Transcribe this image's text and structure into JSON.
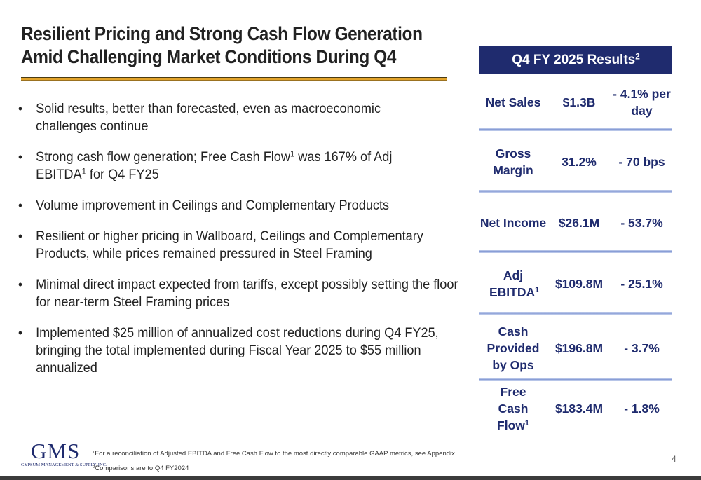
{
  "title": {
    "line1": "Resilient Pricing and Strong Cash Flow Generation",
    "line2": "Amid Challenging Market Conditions During Q4"
  },
  "bullets": [
    {
      "text": "Solid results, better than forecasted, even as macroeconomic challenges continue"
    },
    {
      "part1": "Strong cash flow generation; Free Cash Flow",
      "sup1": "1",
      "part2": " was 167% of Adj EBITDA",
      "sup2": "1",
      "part3": " for Q4 FY25"
    },
    {
      "text": "Volume improvement in Ceilings and Complementary Products"
    },
    {
      "text": "Resilient or higher pricing in Wallboard, Ceilings and Complementary Products, while prices remained pressured in Steel Framing"
    },
    {
      "text": "Minimal direct impact expected from tariffs, except possibly setting the floor for near-term Steel Framing prices"
    },
    {
      "text": "Implemented $25 million of annualized cost reductions during Q4 FY25, bringing the total implemented during Fiscal Year 2025 to $55 million annualized"
    }
  ],
  "bullet_char": "•",
  "results": {
    "header": "Q4 FY 2025 Results",
    "header_sup": "2",
    "rows": [
      {
        "metric": "Net Sales",
        "value": "$1.3B",
        "change": "- 4.1% per day"
      },
      {
        "metric": "Gross Margin",
        "value": "31.2%",
        "change": "- 70 bps"
      },
      {
        "metric": "Net Income",
        "value": "$26.1M",
        "change": "- 53.7%"
      },
      {
        "metric": "Adj EBITDA",
        "metric_sup": "1",
        "value": "$109.8M",
        "change": "- 25.1%"
      },
      {
        "metric": "Cash Provided by Ops",
        "value": "$196.8M",
        "change": "- 3.7%"
      },
      {
        "metric": "Free Cash Flow",
        "metric_sup": "1",
        "value": "$183.4M",
        "change": "- 1.8%"
      }
    ]
  },
  "logo": {
    "mark": "GMS",
    "subtitle": "GYPSUM MANAGEMENT & SUPPLY, INC."
  },
  "footnotes": [
    {
      "sup": "1",
      "text": "For a reconciliation of Adjusted EBITDA and Free Cash Flow to the most directly comparable GAAP metrics, see Appendix."
    },
    {
      "sup": "2",
      "text": "Comparisons are to Q4 FY2024"
    }
  ],
  "page_number": "4",
  "colors": {
    "navy": "#1f2b6e",
    "gold": "#e2a32b",
    "text": "#222222"
  }
}
